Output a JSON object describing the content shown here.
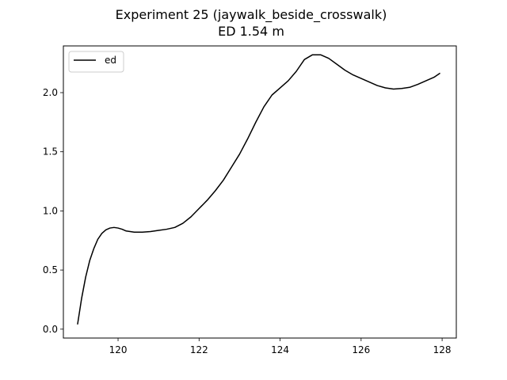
{
  "chart_data": {
    "type": "line",
    "title": "Experiment 25 (jaywalk_beside_crosswalk)",
    "subtitle": "ED 1.54 m",
    "xlabel": "",
    "ylabel": "",
    "xlim": [
      118.65,
      128.35
    ],
    "ylim": [
      -0.075,
      2.395
    ],
    "x_ticks": [
      120,
      122,
      124,
      126,
      128
    ],
    "y_ticks": [
      0.0,
      0.5,
      1.0,
      1.5,
      2.0
    ],
    "x_tick_labels": [
      "120",
      "122",
      "124",
      "126",
      "128"
    ],
    "y_tick_labels": [
      "0.0",
      "0.5",
      "1.0",
      "1.5",
      "2.0"
    ],
    "grid": false,
    "legend_position": "upper-left",
    "series": [
      {
        "name": "ed",
        "color": "#000000",
        "x": [
          119.0,
          119.1,
          119.2,
          119.3,
          119.4,
          119.5,
          119.6,
          119.7,
          119.8,
          119.9,
          120.0,
          120.1,
          120.2,
          120.3,
          120.4,
          120.6,
          120.8,
          121.0,
          121.2,
          121.4,
          121.6,
          121.8,
          122.0,
          122.2,
          122.4,
          122.6,
          122.8,
          123.0,
          123.2,
          123.4,
          123.6,
          123.8,
          124.0,
          124.2,
          124.4,
          124.6,
          124.8,
          125.0,
          125.2,
          125.4,
          125.6,
          125.8,
          126.0,
          126.2,
          126.4,
          126.6,
          126.8,
          127.0,
          127.2,
          127.4,
          127.6,
          127.8,
          127.95
        ],
        "y": [
          0.04,
          0.26,
          0.44,
          0.58,
          0.68,
          0.76,
          0.81,
          0.84,
          0.855,
          0.86,
          0.855,
          0.845,
          0.83,
          0.825,
          0.82,
          0.82,
          0.825,
          0.835,
          0.845,
          0.86,
          0.895,
          0.95,
          1.02,
          1.09,
          1.17,
          1.26,
          1.37,
          1.48,
          1.61,
          1.75,
          1.88,
          1.98,
          2.04,
          2.1,
          2.18,
          2.28,
          2.32,
          2.32,
          2.29,
          2.24,
          2.19,
          2.15,
          2.12,
          2.09,
          2.06,
          2.04,
          2.03,
          2.035,
          2.045,
          2.07,
          2.1,
          2.13,
          2.165
        ]
      }
    ]
  }
}
